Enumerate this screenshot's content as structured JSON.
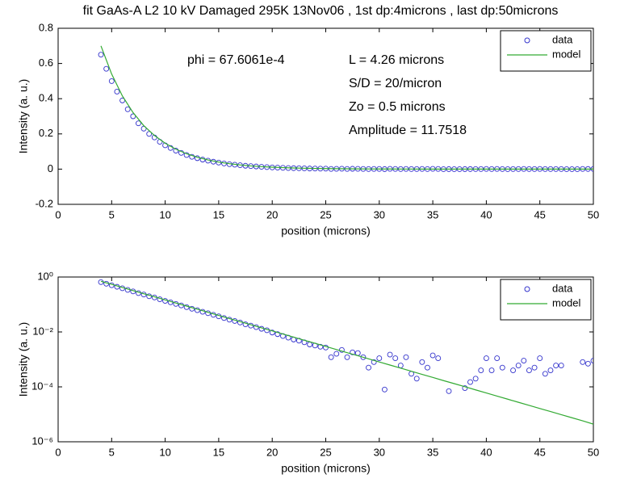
{
  "chart_data": [
    {
      "type": "scatter",
      "title": "fit GaAs-A L2 10 kV Damaged 295K 13Nov06 , 1st dp:4microns , last dp:50microns",
      "x_label": "position (microns)",
      "y_label": "Intensity (a. u.)",
      "xlim": [
        0,
        50
      ],
      "xticks": [
        0,
        5,
        10,
        15,
        20,
        25,
        30,
        35,
        40,
        45,
        50
      ],
      "ylim": [
        -0.2,
        0.8
      ],
      "yticks": [
        -0.2,
        0,
        0.2,
        0.4,
        0.6,
        0.8
      ],
      "yscale": "linear",
      "legend": "upper right",
      "annotations": [
        "phi = 67.6061e-4",
        "L = 4.26 microns",
        "S/D = 20/micron",
        "Zo = 0.5 microns",
        "Amplitude = 11.7518"
      ],
      "series": [
        {
          "name": "data",
          "color": "#3333cc",
          "mode": "markers",
          "x": [
            4,
            4.5,
            5,
            5.5,
            6,
            6.5,
            7,
            7.5,
            8,
            8.5,
            9,
            9.5,
            10,
            10.5,
            11,
            11.5,
            12,
            12.5,
            13,
            13.5,
            14,
            14.5,
            15,
            15.5,
            16,
            16.5,
            17,
            17.5,
            18,
            18.5,
            19,
            19.5,
            20,
            20.5,
            21,
            21.5,
            22,
            22.5,
            23,
            23.5,
            24,
            24.5,
            25,
            25.5,
            26,
            26.5,
            27,
            27.5,
            28,
            28.5,
            29,
            29.5,
            30,
            30.5,
            31,
            31.5,
            32,
            32.5,
            33,
            33.5,
            34,
            34.5,
            35,
            35.5,
            36,
            36.5,
            37,
            37.5,
            38,
            38.5,
            39,
            39.5,
            40,
            40.5,
            41,
            41.5,
            42,
            42.5,
            43,
            43.5,
            44,
            44.5,
            45,
            45.5,
            46,
            46.5,
            47,
            47.5,
            48,
            48.5,
            49,
            49.5,
            50
          ],
          "values": [
            0.65,
            0.57,
            0.5,
            0.44,
            0.39,
            0.34,
            0.3,
            0.26,
            0.23,
            0.2,
            0.18,
            0.155,
            0.135,
            0.12,
            0.105,
            0.092,
            0.08,
            0.07,
            0.062,
            0.054,
            0.048,
            0.042,
            0.037,
            0.032,
            0.028,
            0.025,
            0.022,
            0.019,
            0.017,
            0.015,
            0.013,
            0.0115,
            0.0095,
            0.0083,
            0.0071,
            0.0062,
            0.0053,
            0.0048,
            0.0042,
            0.0035,
            0.0032,
            0.0029,
            0.0027,
            0.0012,
            0.0016,
            0.0022,
            0.0012,
            0.0018,
            0.0017,
            0.0012,
            0.0005,
            0.0008,
            0.0011,
            8e-05,
            0.0015,
            0.0011,
            0.0006,
            0.0012,
            0.0003,
            0.0002,
            0.0008,
            0.0005,
            0.0014,
            0.0011,
            -0.0003,
            7e-05,
            -0.0002,
            -0.0001,
            9e-05,
            0.00015,
            0.0002,
            0.0004,
            0.0011,
            0.0004,
            0.0011,
            0.0005,
            -0.0001,
            0.0004,
            0.0006,
            0.0009,
            0.0004,
            0.0005,
            0.0011,
            0.0003,
            0.0004,
            0.0006,
            0.0006,
            -0.0002,
            -0.0001,
            -0.0003,
            0.0008,
            0.0007,
            0.0009
          ]
        },
        {
          "name": "model",
          "color": "#33aa33",
          "mode": "line",
          "x": [
            4,
            5,
            6,
            7,
            8,
            9,
            10,
            11,
            12,
            13,
            14,
            15,
            16,
            17,
            18,
            19,
            20,
            21,
            22,
            23,
            24,
            25,
            26,
            27,
            28,
            29,
            30,
            31,
            32,
            33,
            34,
            35,
            36,
            37,
            38,
            39,
            40,
            41,
            42,
            43,
            44,
            45,
            46,
            47,
            48,
            49,
            50
          ],
          "values": [
            0.7,
            0.54,
            0.416,
            0.321,
            0.247,
            0.191,
            0.147,
            0.113,
            0.0873,
            0.0673,
            0.0519,
            0.04,
            0.0308,
            0.0238,
            0.0183,
            0.0141,
            0.0109,
            0.00839,
            0.00647,
            0.00499,
            0.00385,
            0.00296,
            0.00229,
            0.00176,
            0.00136,
            0.00105,
            0.000807,
            0.000622,
            0.00048,
            0.00037,
            0.000285,
            0.00022,
            0.000169,
            0.000131,
            0.000101,
            7.76e-05,
            5.98e-05,
            4.61e-05,
            3.56e-05,
            2.74e-05,
            2.11e-05,
            1.63e-05,
            1.26e-05,
            9.7e-06,
            7.5e-06,
            5.8e-06,
            4.4e-06
          ]
        }
      ]
    },
    {
      "type": "scatter",
      "x_label": "position (microns)",
      "y_label": "Intensity (a. u.)",
      "xlim": [
        0,
        50
      ],
      "xticks": [
        0,
        5,
        10,
        15,
        20,
        25,
        30,
        35,
        40,
        45,
        50
      ],
      "ylim": [
        1e-06,
        1
      ],
      "yticks": [
        {
          "value": 1e-06,
          "label": "10⁻⁶"
        },
        {
          "value": 0.0001,
          "label": "10⁻⁴"
        },
        {
          "value": 0.01,
          "label": "10⁻²"
        },
        {
          "value": 1,
          "label": "10⁰"
        }
      ],
      "yscale": "log",
      "legend": "upper right",
      "series": [
        {
          "name": "data",
          "color": "#3333cc",
          "mode": "markers",
          "x": [
            4,
            4.5,
            5,
            5.5,
            6,
            6.5,
            7,
            7.5,
            8,
            8.5,
            9,
            9.5,
            10,
            10.5,
            11,
            11.5,
            12,
            12.5,
            13,
            13.5,
            14,
            14.5,
            15,
            15.5,
            16,
            16.5,
            17,
            17.5,
            18,
            18.5,
            19,
            19.5,
            20,
            20.5,
            21,
            21.5,
            22,
            22.5,
            23,
            23.5,
            24,
            24.5,
            25,
            25.5,
            26,
            26.5,
            27,
            27.5,
            28,
            28.5,
            29,
            29.5,
            30,
            30.5,
            31,
            31.5,
            32,
            32.5,
            33,
            33.5,
            34,
            34.5,
            35,
            35.5,
            36,
            36.5,
            37,
            37.5,
            38,
            38.5,
            39,
            39.5,
            40,
            40.5,
            41,
            41.5,
            42,
            42.5,
            43,
            43.5,
            44,
            44.5,
            45,
            45.5,
            46,
            46.5,
            47,
            47.5,
            48,
            48.5,
            49,
            49.5,
            50
          ],
          "values": [
            0.65,
            0.57,
            0.5,
            0.44,
            0.39,
            0.34,
            0.3,
            0.26,
            0.23,
            0.2,
            0.18,
            0.155,
            0.135,
            0.12,
            0.105,
            0.092,
            0.08,
            0.07,
            0.062,
            0.054,
            0.048,
            0.042,
            0.037,
            0.032,
            0.028,
            0.025,
            0.022,
            0.019,
            0.017,
            0.015,
            0.013,
            0.0115,
            0.0095,
            0.0083,
            0.0071,
            0.0062,
            0.0053,
            0.0048,
            0.0042,
            0.0035,
            0.0032,
            0.0029,
            0.0027,
            0.0012,
            0.0016,
            0.0022,
            0.0012,
            0.0018,
            0.0017,
            0.0012,
            0.0005,
            0.0008,
            0.0011,
            8e-05,
            0.0015,
            0.0011,
            0.0006,
            0.0012,
            0.0003,
            0.0002,
            0.0008,
            0.0005,
            0.0014,
            0.0011,
            -0.0003,
            7e-05,
            -0.0002,
            -0.0001,
            9e-05,
            0.00015,
            0.0002,
            0.0004,
            0.0011,
            0.0004,
            0.0011,
            0.0005,
            -0.0001,
            0.0004,
            0.0006,
            0.0009,
            0.0004,
            0.0005,
            0.0011,
            0.0003,
            0.0004,
            0.0006,
            0.0006,
            -0.0002,
            -0.0001,
            -0.0003,
            0.0008,
            0.0007,
            0.0009
          ]
        },
        {
          "name": "model",
          "color": "#33aa33",
          "mode": "line",
          "x": [
            4,
            5,
            6,
            7,
            8,
            9,
            10,
            11,
            12,
            13,
            14,
            15,
            16,
            17,
            18,
            19,
            20,
            21,
            22,
            23,
            24,
            25,
            26,
            27,
            28,
            29,
            30,
            31,
            32,
            33,
            34,
            35,
            36,
            37,
            38,
            39,
            40,
            41,
            42,
            43,
            44,
            45,
            46,
            47,
            48,
            49,
            50
          ],
          "values": [
            0.7,
            0.54,
            0.416,
            0.321,
            0.247,
            0.191,
            0.147,
            0.113,
            0.0873,
            0.0673,
            0.0519,
            0.04,
            0.0308,
            0.0238,
            0.0183,
            0.0141,
            0.0109,
            0.00839,
            0.00647,
            0.00499,
            0.00385,
            0.00296,
            0.00229,
            0.00176,
            0.00136,
            0.00105,
            0.000807,
            0.000622,
            0.00048,
            0.00037,
            0.000285,
            0.00022,
            0.000169,
            0.000131,
            0.000101,
            7.76e-05,
            5.98e-05,
            4.61e-05,
            3.56e-05,
            2.74e-05,
            2.11e-05,
            1.63e-05,
            1.26e-05,
            9.7e-06,
            7.5e-06,
            5.8e-06,
            4.4e-06
          ]
        }
      ]
    }
  ]
}
